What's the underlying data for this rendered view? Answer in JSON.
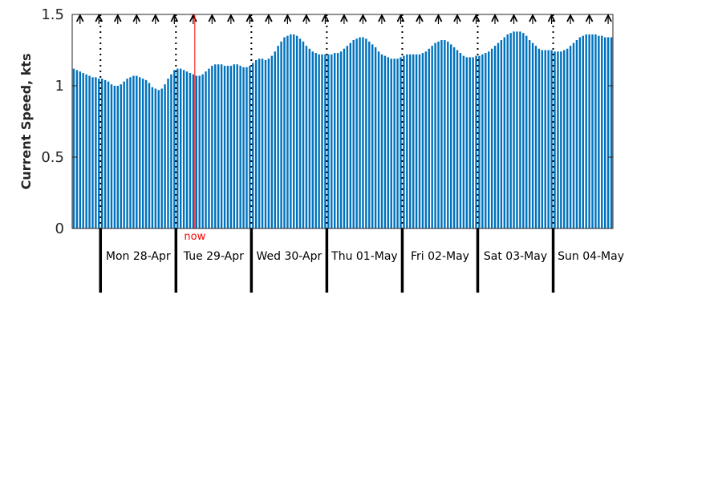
{
  "chart_data": {
    "type": "bar",
    "ylabel": "Current Speed, kts",
    "ylim": [
      0,
      1.5
    ],
    "yticks": [
      "0",
      "0.5",
      "1",
      "1.5"
    ],
    "bar_color": "#0072bd",
    "now_color": "#ff0000",
    "now_label": "now",
    "now_hour": 30,
    "days": [
      "Mon 28-Apr",
      "Tue 29-Apr",
      "Wed 30-Apr",
      "Thu 01-May",
      "Fri 02-May",
      "Sat 03-May",
      "Sun 04-May"
    ],
    "start_hour_offset": -9,
    "hours_per_day": 24,
    "direction_arrows_every_hours": 6,
    "direction": "north",
    "values": [
      1.12,
      1.11,
      1.1,
      1.09,
      1.08,
      1.07,
      1.06,
      1.06,
      1.05,
      1.05,
      1.04,
      1.03,
      1.01,
      1.0,
      1.0,
      1.01,
      1.03,
      1.05,
      1.06,
      1.07,
      1.07,
      1.06,
      1.05,
      1.04,
      1.02,
      0.99,
      0.98,
      0.97,
      0.98,
      1.01,
      1.05,
      1.08,
      1.11,
      1.12,
      1.12,
      1.11,
      1.1,
      1.09,
      1.08,
      1.07,
      1.07,
      1.08,
      1.1,
      1.12,
      1.14,
      1.15,
      1.15,
      1.15,
      1.14,
      1.14,
      1.14,
      1.15,
      1.15,
      1.14,
      1.13,
      1.13,
      1.14,
      1.16,
      1.18,
      1.19,
      1.19,
      1.18,
      1.19,
      1.21,
      1.24,
      1.28,
      1.31,
      1.34,
      1.35,
      1.36,
      1.36,
      1.35,
      1.33,
      1.31,
      1.28,
      1.26,
      1.24,
      1.23,
      1.22,
      1.22,
      1.22,
      1.22,
      1.22,
      1.23,
      1.23,
      1.24,
      1.26,
      1.28,
      1.3,
      1.32,
      1.33,
      1.34,
      1.34,
      1.33,
      1.31,
      1.29,
      1.27,
      1.24,
      1.22,
      1.21,
      1.2,
      1.19,
      1.19,
      1.19,
      1.2,
      1.21,
      1.22,
      1.22,
      1.22,
      1.22,
      1.22,
      1.23,
      1.24,
      1.26,
      1.28,
      1.3,
      1.31,
      1.32,
      1.32,
      1.31,
      1.29,
      1.27,
      1.25,
      1.23,
      1.21,
      1.2,
      1.2,
      1.2,
      1.21,
      1.21,
      1.22,
      1.23,
      1.24,
      1.26,
      1.28,
      1.3,
      1.32,
      1.34,
      1.36,
      1.37,
      1.38,
      1.38,
      1.38,
      1.37,
      1.35,
      1.32,
      1.3,
      1.28,
      1.26,
      1.25,
      1.25,
      1.25,
      1.25,
      1.24,
      1.24,
      1.24,
      1.25,
      1.26,
      1.28,
      1.3,
      1.32,
      1.34,
      1.35,
      1.36,
      1.36,
      1.36,
      1.36,
      1.35,
      1.35,
      1.34,
      1.34,
      1.34
    ]
  }
}
